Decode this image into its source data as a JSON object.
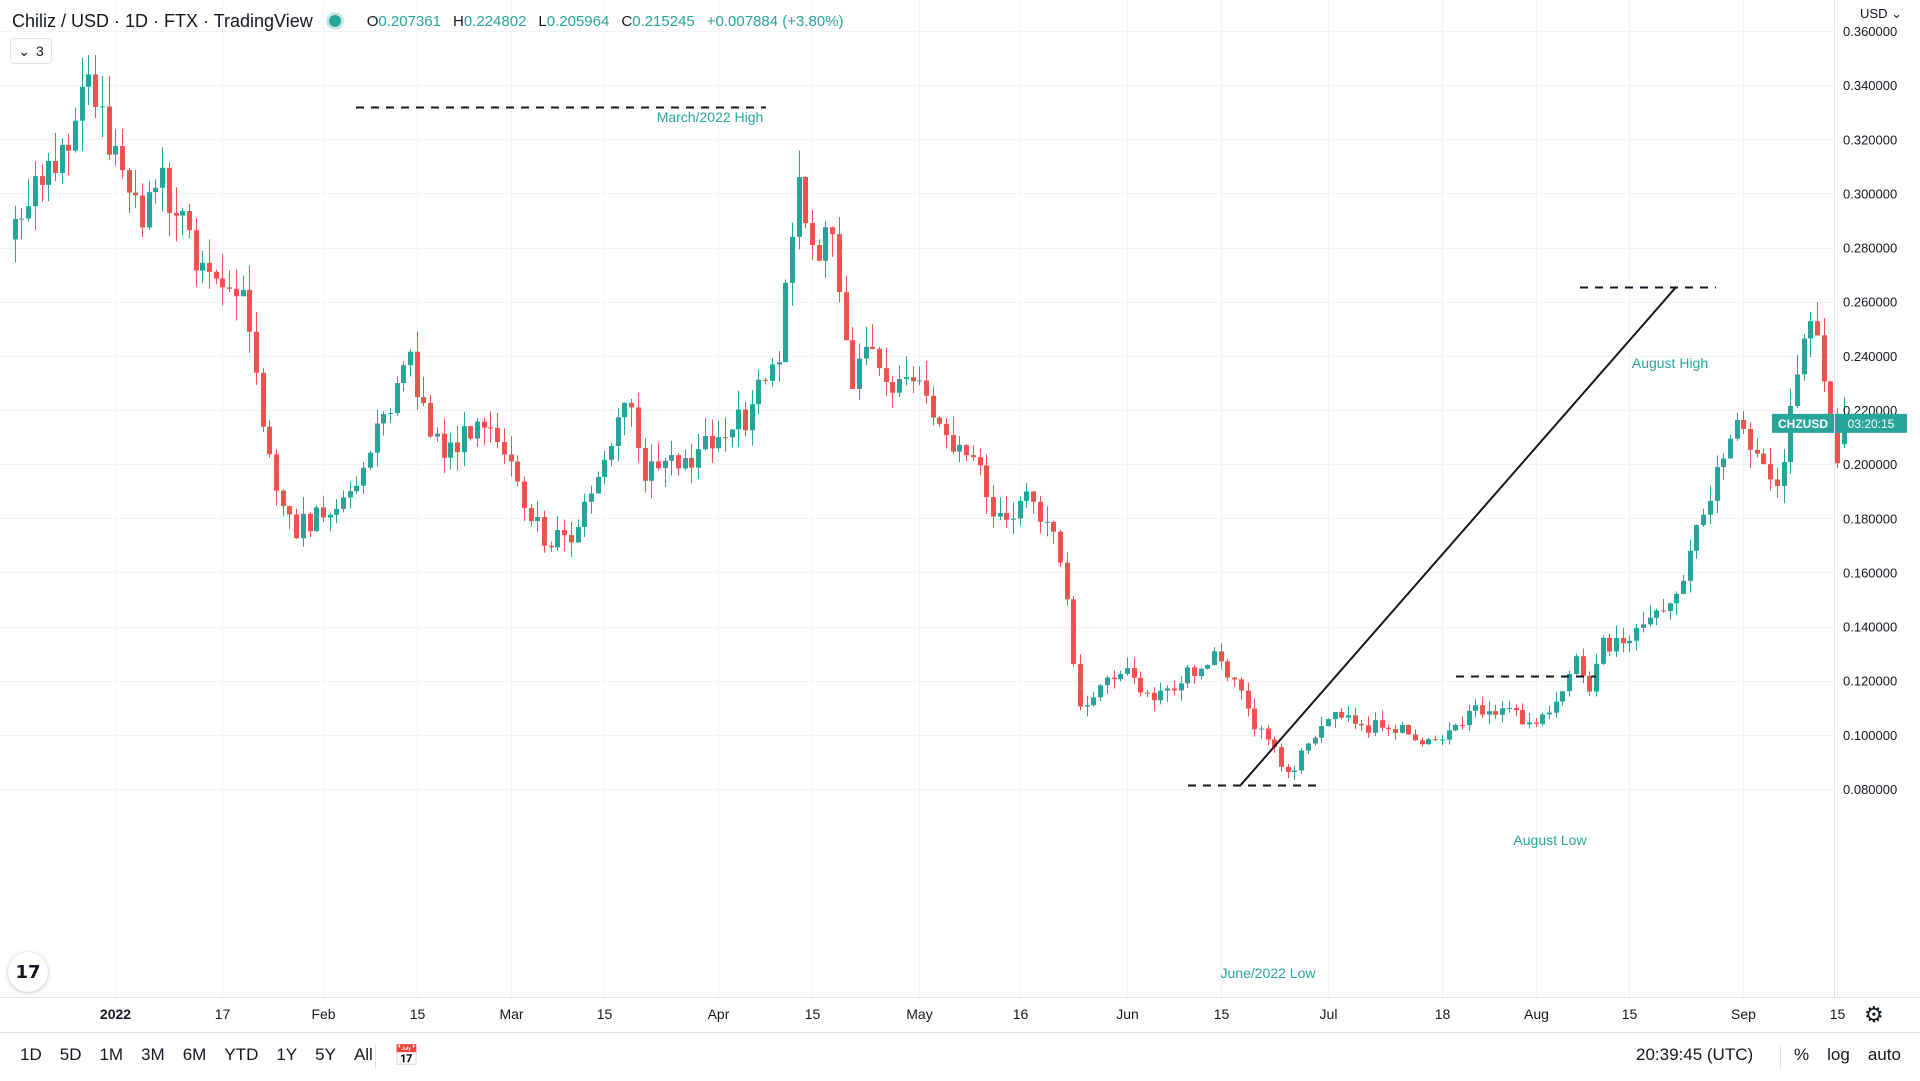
{
  "header": {
    "title": "Chiliz / USD · 1D · FTX · TradingView",
    "ohlc": {
      "o": "0.207361",
      "h": "0.224802",
      "l": "0.205964",
      "c": "0.215245",
      "change": "+0.007884 (+3.80%)"
    },
    "indicator_count": "3"
  },
  "price_axis": {
    "currency": "USD",
    "ticks": [
      "0.360000",
      "0.340000",
      "0.320000",
      "0.300000",
      "0.280000",
      "0.260000",
      "0.240000",
      "0.220000",
      "0.200000",
      "0.180000",
      "0.160000",
      "0.140000",
      "0.120000",
      "0.100000",
      "0.080000"
    ]
  },
  "time_axis": {
    "labels": [
      "2022",
      "17",
      "Feb",
      "15",
      "Mar",
      "15",
      "Apr",
      "15",
      "May",
      "16",
      "Jun",
      "15",
      "Jul",
      "18",
      "Aug",
      "15",
      "Sep",
      "15"
    ]
  },
  "symbol_tag": {
    "symbol": "CHZUSD",
    "price": "0.215245",
    "countdown": "03:20:15"
  },
  "bottom_bar": {
    "ranges": [
      "1D",
      "5D",
      "1M",
      "3M",
      "6M",
      "YTD",
      "1Y",
      "5Y",
      "All"
    ],
    "clock": "20:39:45 (UTC)",
    "right_buttons": [
      "%",
      "log",
      "auto"
    ]
  },
  "colors": {
    "up": "#26a69a",
    "down": "#ef5350",
    "grid": "#f0f3fa",
    "axis": "#e0e3eb"
  },
  "chart_data": {
    "type": "candlestick",
    "title": "Chiliz / USD · 1D · FTX",
    "x_range": [
      "2021-12-16",
      "2022-08-29"
    ],
    "ylim": [
      0.07,
      0.36
    ],
    "grid": true,
    "annotations": [
      {
        "text": "March/2022 High",
        "value": 0.3318,
        "style": "dashed-horizontal"
      },
      {
        "text": "August High",
        "value": 0.2655,
        "style": "dashed-horizontal"
      },
      {
        "text": "August Low",
        "value": 0.1218,
        "style": "dashed-horizontal"
      },
      {
        "text": "June/2022 Low",
        "value": 0.0815,
        "style": "dashed-horizontal"
      },
      {
        "text": "",
        "style": "trend-line",
        "from": {
          "date": "2022-06-18",
          "value": 0.0815
        },
        "to": {
          "date": "2022-08-22",
          "value": 0.2655
        }
      }
    ],
    "series": [
      {
        "name": "CHZUSD",
        "start_date": "2021-12-16",
        "close_path": [
          [
            0,
            0.283
          ],
          [
            10,
            0.325
          ],
          [
            12,
            0.338
          ],
          [
            14,
            0.326
          ],
          [
            20,
            0.289
          ],
          [
            22,
            0.309
          ],
          [
            30,
            0.266
          ],
          [
            35,
            0.259
          ],
          [
            38,
            0.216
          ],
          [
            40,
            0.186
          ],
          [
            43,
            0.177
          ],
          [
            50,
            0.184
          ],
          [
            55,
            0.213
          ],
          [
            60,
            0.236
          ],
          [
            65,
            0.201
          ],
          [
            70,
            0.217
          ],
          [
            75,
            0.197
          ],
          [
            78,
            0.183
          ],
          [
            80,
            0.172
          ],
          [
            84,
            0.173
          ],
          [
            88,
            0.197
          ],
          [
            92,
            0.226
          ],
          [
            95,
            0.197
          ],
          [
            100,
            0.199
          ],
          [
            106,
            0.211
          ],
          [
            110,
            0.217
          ],
          [
            115,
            0.241
          ],
          [
            117,
            0.29
          ],
          [
            118,
            0.304
          ],
          [
            120,
            0.279
          ],
          [
            123,
            0.283
          ],
          [
            126,
            0.229
          ],
          [
            128,
            0.242
          ],
          [
            132,
            0.228
          ],
          [
            136,
            0.23
          ],
          [
            140,
            0.213
          ],
          [
            145,
            0.196
          ],
          [
            148,
            0.179
          ],
          [
            152,
            0.189
          ],
          [
            156,
            0.175
          ],
          [
            158,
            0.147
          ],
          [
            160,
            0.111
          ],
          [
            163,
            0.117
          ],
          [
            167,
            0.122
          ],
          [
            171,
            0.113
          ],
          [
            175,
            0.121
          ],
          [
            180,
            0.129
          ],
          [
            183,
            0.121
          ],
          [
            186,
            0.104
          ],
          [
            189,
            0.094
          ],
          [
            191,
            0.085
          ],
          [
            194,
            0.097
          ],
          [
            198,
            0.108
          ],
          [
            202,
            0.103
          ],
          [
            208,
            0.103
          ],
          [
            212,
            0.097
          ],
          [
            216,
            0.104
          ],
          [
            220,
            0.11
          ],
          [
            225,
            0.108
          ],
          [
            228,
            0.103
          ],
          [
            232,
            0.118
          ],
          [
            234,
            0.128
          ],
          [
            236,
            0.118
          ],
          [
            238,
            0.133
          ],
          [
            242,
            0.137
          ],
          [
            246,
            0.144
          ],
          [
            250,
            0.159
          ],
          [
            254,
            0.188
          ],
          [
            256,
            0.207
          ],
          [
            258,
            0.221
          ],
          [
            260,
            0.209
          ],
          [
            264,
            0.189
          ],
          [
            266,
            0.219
          ],
          [
            268,
            0.25
          ],
          [
            270,
            0.245
          ],
          [
            272,
            0.223
          ],
          [
            273,
            0.205
          ],
          [
            274,
            0.215
          ]
        ]
      }
    ]
  }
}
